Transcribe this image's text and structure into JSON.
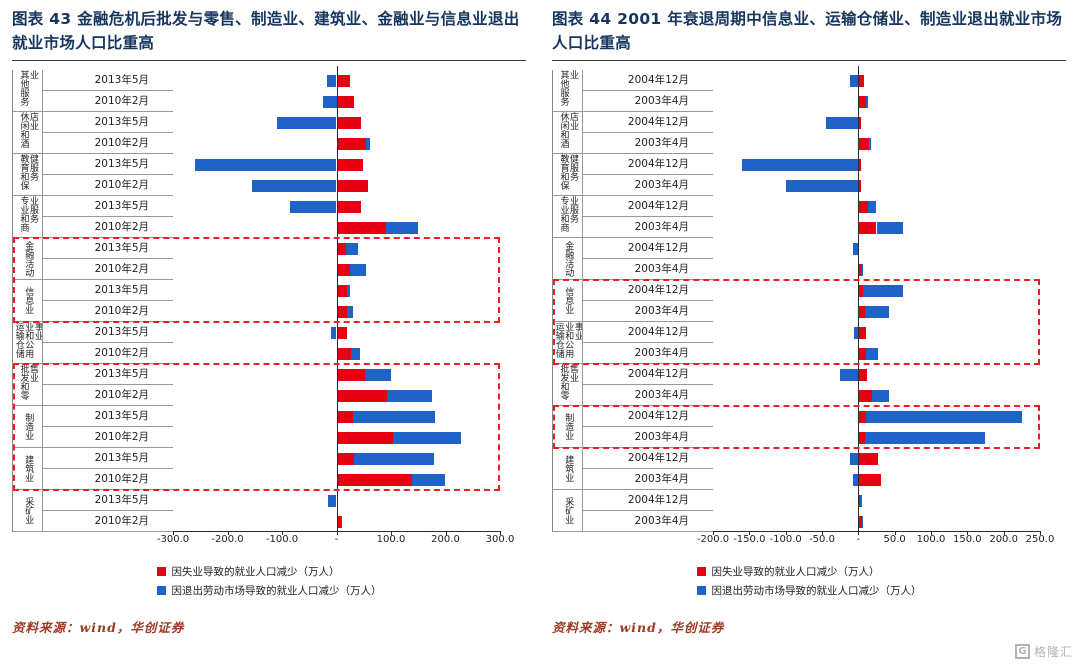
{
  "theme": {
    "title_color": "#17365d",
    "source_color": "#9e3a23",
    "axis_color": "#2b2b2b",
    "grid_color": "#999999",
    "text_color": "#222222"
  },
  "branding": {
    "logo_letter": "G",
    "logo_text": "格隆汇"
  },
  "figures": [
    {
      "title": "图表 43  金融危机后批发与零售、制造业、建筑业、金融业与信息业退出就业市场人口比重高",
      "source": "资料来源：wind，华创证券"
    },
    {
      "title": "图表 44  2001 年衰退周期中信息业、运输仓储业、制造业退出就业市场人口比重高",
      "source": "资料来源：wind，华创证券"
    }
  ],
  "chart_data": [
    {
      "type": "bar",
      "orientation": "horizontal",
      "stacked": true,
      "title": "金融危机后批发与零售、制造业、建筑业、金融业与信息业退出就业市场人口比重高",
      "unit": "万人",
      "xlim": [
        -300,
        300
      ],
      "legend_position": "bottom",
      "highlight_color": "#ee1c25",
      "xticks": [
        {
          "v": -300,
          "label": "-300.0"
        },
        {
          "v": -200,
          "label": "-200.0"
        },
        {
          "v": -100,
          "label": "-100.0"
        },
        {
          "v": 0,
          "label": "-"
        },
        {
          "v": 100,
          "label": "100.0"
        },
        {
          "v": 200,
          "label": "200.0"
        },
        {
          "v": 300,
          "label": "300.0"
        }
      ],
      "series": [
        {
          "key": "red",
          "name": "因失业导致的就业人口减少（万人）",
          "color": "#e60012"
        },
        {
          "key": "blue",
          "name": "因退出劳动市场导致的就业人口减少（万人）",
          "color": "#2063c6"
        }
      ],
      "groups": [
        {
          "industry": "其他服务业",
          "rows": [
            {
              "period": "2013年5月",
              "red": 25,
              "blue": -18
            },
            {
              "period": "2010年2月",
              "red": 32,
              "blue": -25
            }
          ]
        },
        {
          "industry": "休闲和酒店业",
          "rows": [
            {
              "period": "2013年5月",
              "red": 45,
              "blue": -110
            },
            {
              "period": "2010年2月",
              "red": 55,
              "blue": 6
            }
          ]
        },
        {
          "industry": "教育和保健服务",
          "rows": [
            {
              "period": "2013年5月",
              "red": 48,
              "blue": -260
            },
            {
              "period": "2010年2月",
              "red": 58,
              "blue": -155
            }
          ]
        },
        {
          "industry": "专业和商业服务",
          "rows": [
            {
              "period": "2013年5月",
              "red": 45,
              "blue": -85
            },
            {
              "period": "2010年2月",
              "red": 90,
              "blue": 60
            }
          ]
        },
        {
          "industry": "金融活动",
          "rows": [
            {
              "period": "2013年5月",
              "red": 18,
              "blue": 22
            },
            {
              "period": "2010年2月",
              "red": 25,
              "blue": 30
            }
          ]
        },
        {
          "industry": "信息业",
          "rows": [
            {
              "period": "2013年5月",
              "red": 20,
              "blue": 5
            },
            {
              "period": "2010年2月",
              "red": 20,
              "blue": 10
            }
          ]
        },
        {
          "industry": "运输仓储业和公用事业",
          "rows": [
            {
              "period": "2013年5月",
              "red": 20,
              "blue": -10
            },
            {
              "period": "2010年2月",
              "red": 27,
              "blue": 16
            }
          ]
        },
        {
          "industry": "批发和零售业",
          "rows": [
            {
              "period": "2013年5月",
              "red": 53,
              "blue": 47
            },
            {
              "period": "2010年2月",
              "red": 92,
              "blue": 83
            }
          ]
        },
        {
          "industry": "制造业",
          "rows": [
            {
              "period": "2013年5月",
              "red": 30,
              "blue": 150
            },
            {
              "period": "2010年2月",
              "red": 104,
              "blue": 125
            }
          ]
        },
        {
          "industry": "建筑业",
          "rows": [
            {
              "period": "2013年5月",
              "red": 33,
              "blue": 145
            },
            {
              "period": "2010年2月",
              "red": 139,
              "blue": 60
            }
          ]
        },
        {
          "industry": "采矿业",
          "rows": [
            {
              "period": "2013年5月",
              "red": 0,
              "blue": -15
            },
            {
              "period": "2010年2月",
              "red": 8,
              "blue": 3
            }
          ]
        }
      ],
      "highlights": [
        {
          "start_row": 8,
          "row_count": 4,
          "covers": "金融活动、信息业"
        },
        {
          "start_row": 14,
          "row_count": 6,
          "covers": "批发和零售业、制造业、建筑业"
        }
      ]
    },
    {
      "type": "bar",
      "orientation": "horizontal",
      "stacked": true,
      "title": "2001 年衰退周期中信息业、运输仓储业、制造业退出就业市场人口比重高",
      "unit": "万人",
      "xlim": [
        -200,
        250
      ],
      "legend_position": "bottom",
      "highlight_color": "#ee1c25",
      "xticks": [
        {
          "v": -200,
          "label": "-200.0"
        },
        {
          "v": -150,
          "label": "-150.0"
        },
        {
          "v": -100,
          "label": "-100.0"
        },
        {
          "v": -50,
          "label": "-50.0"
        },
        {
          "v": 0,
          "label": "-"
        },
        {
          "v": 50,
          "label": "50.0"
        },
        {
          "v": 100,
          "label": "100.0"
        },
        {
          "v": 150,
          "label": "150.0"
        },
        {
          "v": 200,
          "label": "200.0"
        },
        {
          "v": 250,
          "label": "250.0"
        }
      ],
      "series": [
        {
          "key": "red",
          "name": "因失业导致的就业人口减少（万人）",
          "color": "#e60012"
        },
        {
          "key": "blue",
          "name": "因退出劳动市场导致的就业人口减少（万人）",
          "color": "#2063c6"
        }
      ],
      "groups": [
        {
          "industry": "其他服务业",
          "rows": [
            {
              "period": "2004年12月",
              "red": 8,
              "blue": -12
            },
            {
              "period": "2003年4月",
              "red": 10,
              "blue": 3
            }
          ]
        },
        {
          "industry": "休闲和酒店业",
          "rows": [
            {
              "period": "2004年12月",
              "red": 3,
              "blue": -45
            },
            {
              "period": "2003年4月",
              "red": 15,
              "blue": 3
            }
          ]
        },
        {
          "industry": "教育和保健服务",
          "rows": [
            {
              "period": "2004年12月",
              "red": 4,
              "blue": -160
            },
            {
              "period": "2003年4月",
              "red": 4,
              "blue": -100
            }
          ]
        },
        {
          "industry": "专业和商业服务",
          "rows": [
            {
              "period": "2004年12月",
              "red": 13,
              "blue": 12
            },
            {
              "period": "2003年4月",
              "red": 25,
              "blue": 36
            }
          ]
        },
        {
          "industry": "金融活动",
          "rows": [
            {
              "period": "2004年12月",
              "red": 0,
              "blue": -8
            },
            {
              "period": "2003年4月",
              "red": 5,
              "blue": 2
            }
          ]
        },
        {
          "industry": "信息业",
          "rows": [
            {
              "period": "2004年12月",
              "red": 7,
              "blue": 55
            },
            {
              "period": "2003年4月",
              "red": 9,
              "blue": 33
            }
          ]
        },
        {
          "industry": "运输仓储业和公用事业",
          "rows": [
            {
              "period": "2004年12月",
              "red": 10,
              "blue": -6
            },
            {
              "period": "2003年4月",
              "red": 10,
              "blue": 17
            }
          ]
        },
        {
          "industry": "批发和零售业",
          "rows": [
            {
              "period": "2004年12月",
              "red": 12,
              "blue": -25
            },
            {
              "period": "2003年4月",
              "red": 19,
              "blue": 23
            }
          ]
        },
        {
          "industry": "制造业",
          "rows": [
            {
              "period": "2004年12月",
              "red": 10,
              "blue": 215
            },
            {
              "period": "2003年4月",
              "red": 9,
              "blue": 166
            }
          ]
        },
        {
          "industry": "建筑业",
          "rows": [
            {
              "period": "2004年12月",
              "red": 27,
              "blue": -12
            },
            {
              "period": "2003年4月",
              "red": 31,
              "blue": -8
            }
          ]
        },
        {
          "industry": "采矿业",
          "rows": [
            {
              "period": "2004年12月",
              "red": 2,
              "blue": 3
            },
            {
              "period": "2003年4月",
              "red": 5,
              "blue": 2
            }
          ]
        }
      ],
      "highlights": [
        {
          "start_row": 10,
          "row_count": 4,
          "covers": "信息业、运输仓储业和公用事业"
        },
        {
          "start_row": 16,
          "row_count": 2,
          "covers": "制造业"
        }
      ]
    }
  ]
}
